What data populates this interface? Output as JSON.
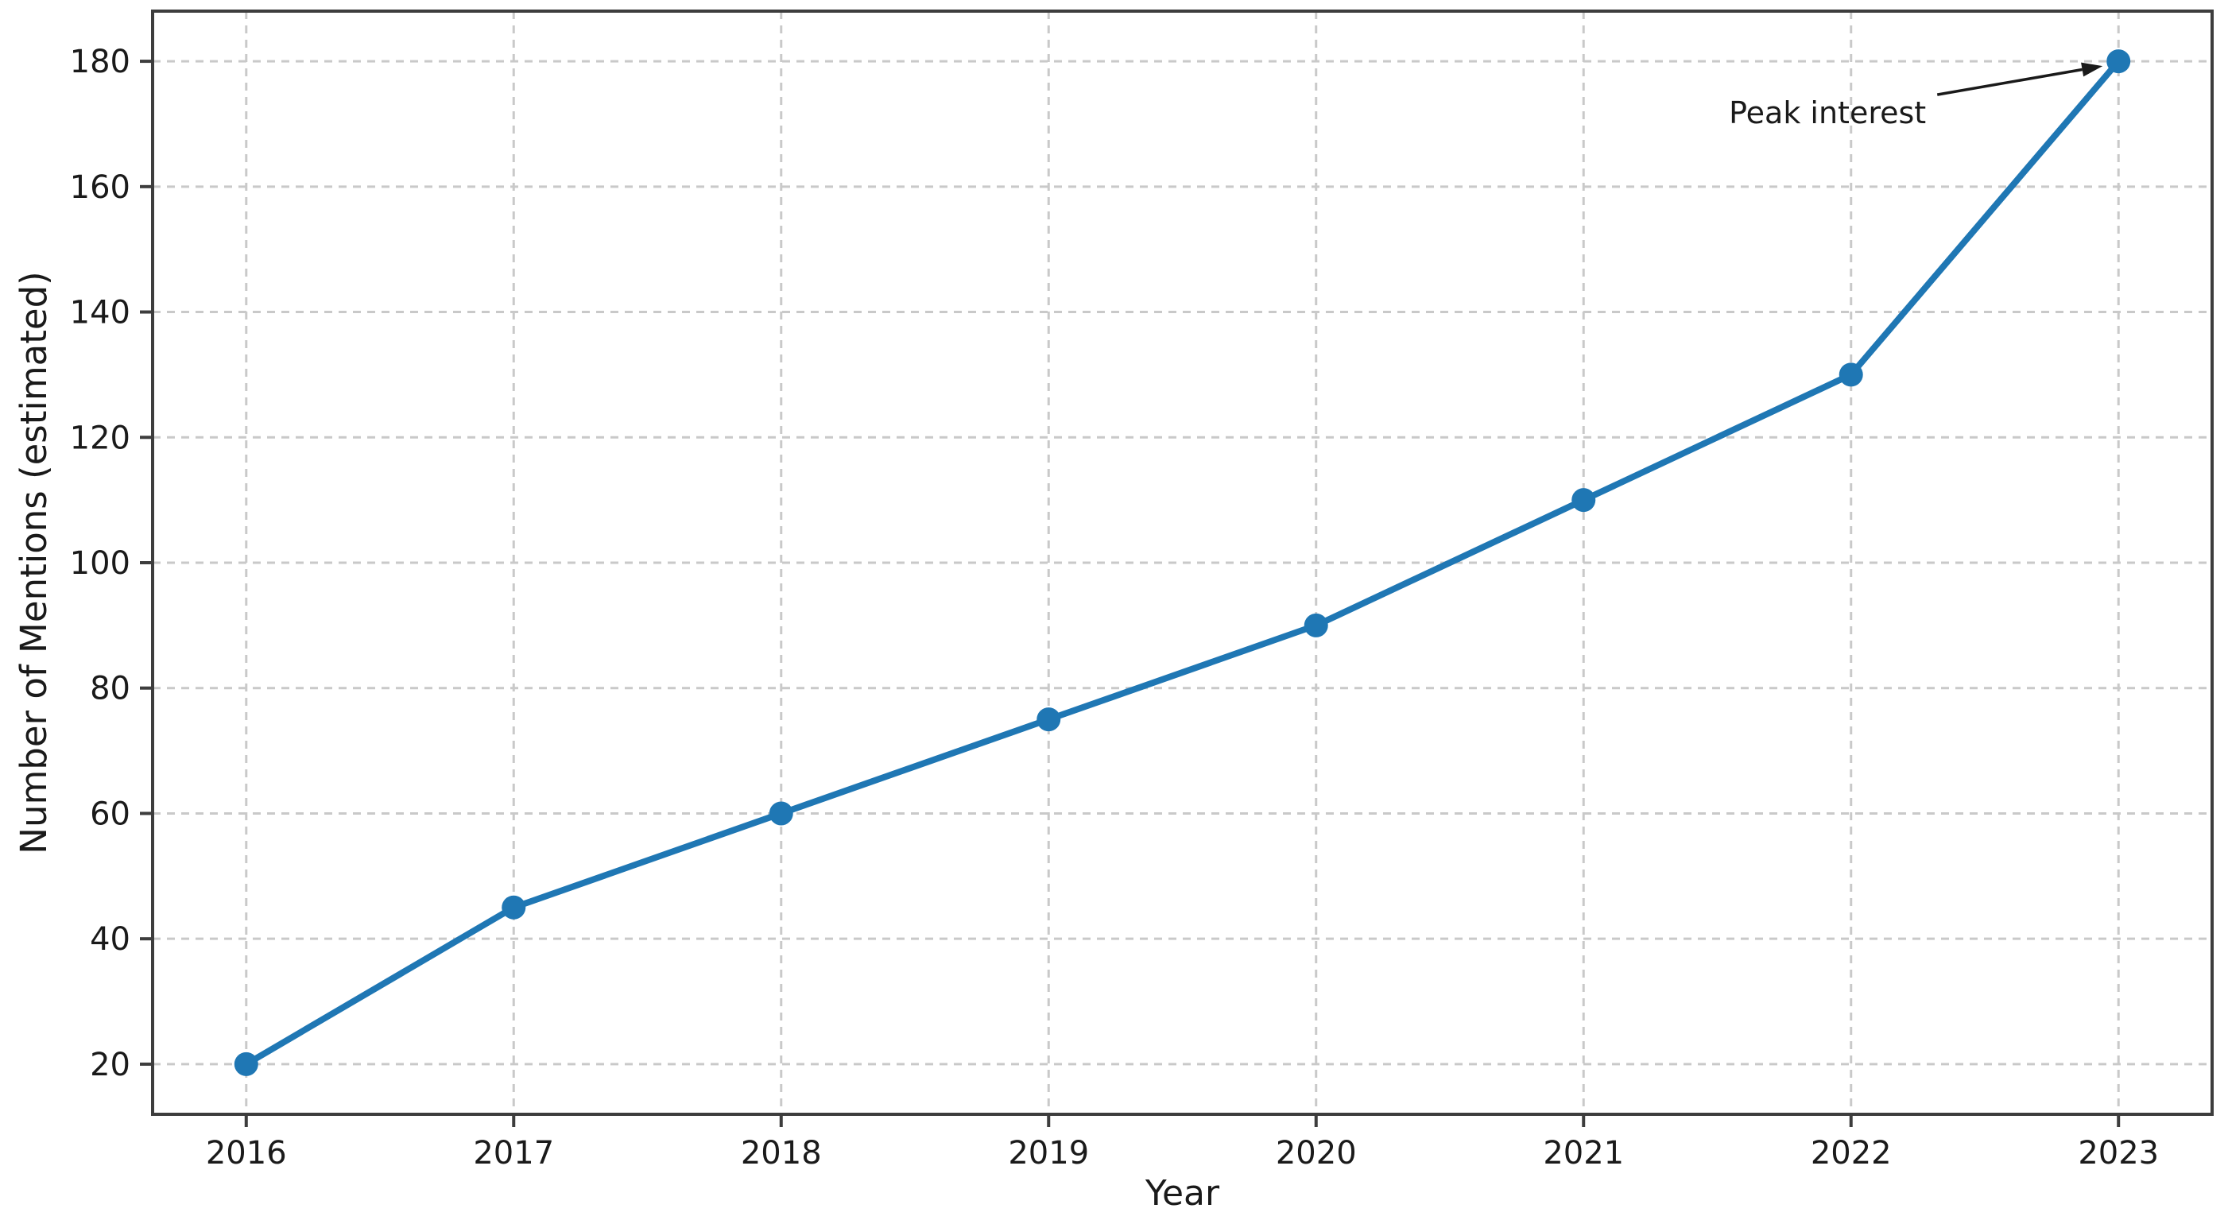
{
  "chart_data": {
    "type": "line",
    "x": [
      2016,
      2017,
      2018,
      2019,
      2020,
      2021,
      2022,
      2023
    ],
    "series": [
      {
        "name": "mentions",
        "values": [
          20,
          45,
          60,
          75,
          90,
          110,
          130,
          180
        ]
      }
    ],
    "title": "",
    "xlabel": "Year",
    "ylabel": "Number of Mentions (estimated)",
    "x_ticks": [
      2016,
      2017,
      2018,
      2019,
      2020,
      2021,
      2022,
      2023
    ],
    "x_tick_labels": [
      "2016",
      "2017",
      "2018",
      "2019",
      "2020",
      "2021",
      "2022",
      "2023"
    ],
    "y_ticks": [
      20,
      40,
      60,
      80,
      100,
      120,
      140,
      160,
      180
    ],
    "y_tick_labels": [
      "20",
      "40",
      "60",
      "80",
      "100",
      "120",
      "140",
      "160",
      "180"
    ],
    "xlim": [
      2015.65,
      2023.35
    ],
    "ylim": [
      12,
      188
    ],
    "grid": true,
    "grid_style": "dashed",
    "legend": "none",
    "annotation": {
      "text": "Peak interest",
      "target_x": 2023,
      "target_y": 180,
      "text_dx": -242,
      "text_dy": 78
    },
    "colors": {
      "line": "#1f77b4",
      "marker": "#1f77b4",
      "grid": "#c9c9c9",
      "spine": "#3d3d3d",
      "text": "#1a1a1a",
      "arrow": "#1a1a1a",
      "background": "#ffffff"
    }
  }
}
